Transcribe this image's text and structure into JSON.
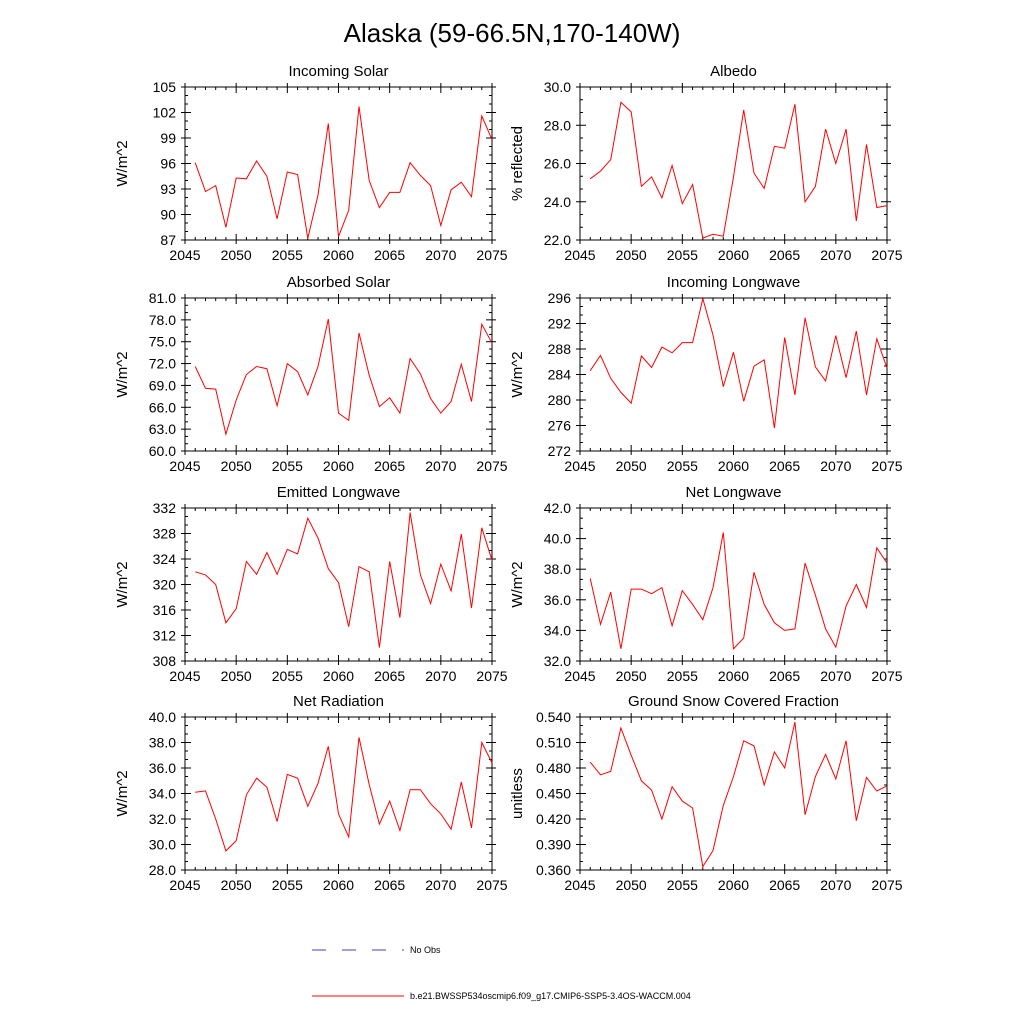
{
  "figure": {
    "title": "Alaska (59-66.5N,170-140W)",
    "line_color": "#ff0000",
    "obs_color": "#4040c0"
  },
  "legend": {
    "obs_label": "No Obs",
    "model_label": "b.e21.BWSSP534oscmip6.f09_g17.CMIP6-SSP5-3.4OS-WACCM.004"
  },
  "chart_data": [
    {
      "type": "line",
      "title": "Incoming Solar",
      "ylabel": "W/m^2",
      "xlim": [
        2045,
        2075
      ],
      "ylim": [
        87,
        105
      ],
      "yticks": [
        "87",
        "90",
        "93",
        "96",
        "99",
        "102",
        "105"
      ],
      "xticks": [
        "2045",
        "2050",
        "2055",
        "2060",
        "2065",
        "2070",
        "2075"
      ],
      "x": [
        2046,
        2047,
        2048,
        2049,
        2050,
        2051,
        2052,
        2053,
        2054,
        2055,
        2056,
        2057,
        2058,
        2059,
        2060,
        2061,
        2062,
        2063,
        2064,
        2065,
        2066,
        2067,
        2068,
        2069,
        2070,
        2071,
        2072,
        2073,
        2074,
        2075
      ],
      "series": [
        {
          "values": [
            96.1,
            92.7,
            93.4,
            88.5,
            94.3,
            94.2,
            96.3,
            94.5,
            89.5,
            95.0,
            94.7,
            87.2,
            92.3,
            100.7,
            87.4,
            90.5,
            102.7,
            94.0,
            90.8,
            92.6,
            92.6,
            96.1,
            94.6,
            93.4,
            88.7,
            92.9,
            93.8,
            92.1,
            101.6,
            98.8
          ]
        }
      ]
    },
    {
      "type": "line",
      "title": "Albedo",
      "ylabel": "% reflected",
      "xlim": [
        2045,
        2075
      ],
      "ylim": [
        22.0,
        30.0
      ],
      "yticks": [
        "22.0",
        "24.0",
        "26.0",
        "28.0",
        "30.0"
      ],
      "xticks": [
        "2045",
        "2050",
        "2055",
        "2060",
        "2065",
        "2070",
        "2075"
      ],
      "x": [
        2046,
        2047,
        2048,
        2049,
        2050,
        2051,
        2052,
        2053,
        2054,
        2055,
        2056,
        2057,
        2058,
        2059,
        2060,
        2061,
        2062,
        2063,
        2064,
        2065,
        2066,
        2067,
        2068,
        2069,
        2070,
        2071,
        2072,
        2073,
        2074,
        2075
      ],
      "series": [
        {
          "values": [
            25.2,
            25.6,
            26.2,
            29.2,
            28.7,
            24.8,
            25.3,
            24.2,
            25.9,
            23.9,
            24.9,
            22.1,
            22.3,
            22.2,
            25.3,
            28.8,
            25.5,
            24.7,
            26.9,
            26.8,
            29.1,
            24.0,
            24.8,
            27.8,
            26.0,
            27.8,
            23.0,
            27.0,
            23.7,
            23.8
          ]
        }
      ]
    },
    {
      "type": "line",
      "title": "Absorbed Solar",
      "ylabel": "W/m^2",
      "xlim": [
        2045,
        2075
      ],
      "ylim": [
        60.0,
        81.0
      ],
      "yticks": [
        "60.0",
        "63.0",
        "66.0",
        "69.0",
        "72.0",
        "75.0",
        "78.0",
        "81.0"
      ],
      "xticks": [
        "2045",
        "2050",
        "2055",
        "2060",
        "2065",
        "2070",
        "2075"
      ],
      "x": [
        2046,
        2047,
        2048,
        2049,
        2050,
        2051,
        2052,
        2053,
        2054,
        2055,
        2056,
        2057,
        2058,
        2059,
        2060,
        2061,
        2062,
        2063,
        2064,
        2065,
        2066,
        2067,
        2068,
        2069,
        2070,
        2071,
        2072,
        2073,
        2074,
        2075
      ],
      "series": [
        {
          "values": [
            71.6,
            68.6,
            68.5,
            62.3,
            67.0,
            70.5,
            71.6,
            71.3,
            66.2,
            72.0,
            70.9,
            67.7,
            71.6,
            78.1,
            65.2,
            64.2,
            76.2,
            70.4,
            66.1,
            67.3,
            65.2,
            72.7,
            70.6,
            67.2,
            65.2,
            66.8,
            71.9,
            66.8,
            77.4,
            74.8
          ]
        }
      ]
    },
    {
      "type": "line",
      "title": "Incoming Longwave",
      "ylabel": "W/m^2",
      "xlim": [
        2045,
        2075
      ],
      "ylim": [
        272,
        296
      ],
      "yticks": [
        "272",
        "276",
        "280",
        "284",
        "288",
        "292",
        "296"
      ],
      "xticks": [
        "2045",
        "2050",
        "2055",
        "2060",
        "2065",
        "2070",
        "2075"
      ],
      "x": [
        2046,
        2047,
        2048,
        2049,
        2050,
        2051,
        2052,
        2053,
        2054,
        2055,
        2056,
        2057,
        2058,
        2059,
        2060,
        2061,
        2062,
        2063,
        2064,
        2065,
        2066,
        2067,
        2068,
        2069,
        2070,
        2071,
        2072,
        2073,
        2074,
        2075
      ],
      "series": [
        {
          "values": [
            284.6,
            287.0,
            283.4,
            281.2,
            279.5,
            286.9,
            285.1,
            288.3,
            287.4,
            289.0,
            289.0,
            295.9,
            290.2,
            282.1,
            287.5,
            279.8,
            285.3,
            286.3,
            275.6,
            289.8,
            280.8,
            292.9,
            285.2,
            283.0,
            290.1,
            283.5,
            290.8,
            280.8,
            289.6,
            285.0
          ]
        }
      ]
    },
    {
      "type": "line",
      "title": "Emitted Longwave",
      "ylabel": "W/m^2",
      "xlim": [
        2045,
        2075
      ],
      "ylim": [
        308,
        332
      ],
      "yticks": [
        "308",
        "312",
        "316",
        "320",
        "324",
        "328",
        "332"
      ],
      "xticks": [
        "2045",
        "2050",
        "2055",
        "2060",
        "2065",
        "2070",
        "2075"
      ],
      "x": [
        2046,
        2047,
        2048,
        2049,
        2050,
        2051,
        2052,
        2053,
        2054,
        2055,
        2056,
        2057,
        2058,
        2059,
        2060,
        2061,
        2062,
        2063,
        2064,
        2065,
        2066,
        2067,
        2068,
        2069,
        2070,
        2071,
        2072,
        2073,
        2074,
        2075
      ],
      "series": [
        {
          "values": [
            322.0,
            321.5,
            320.0,
            314.0,
            316.2,
            323.6,
            321.6,
            325.0,
            321.6,
            325.5,
            324.8,
            330.4,
            327.3,
            322.5,
            320.3,
            313.4,
            322.8,
            322.0,
            310.1,
            323.6,
            314.8,
            331.3,
            321.5,
            317.0,
            323.2,
            319.0,
            327.9,
            316.3,
            328.9,
            323.8
          ]
        }
      ]
    },
    {
      "type": "line",
      "title": "Net Longwave",
      "ylabel": "W/m^2",
      "xlim": [
        2045,
        2075
      ],
      "ylim": [
        32.0,
        42.0
      ],
      "yticks": [
        "32.0",
        "34.0",
        "36.0",
        "38.0",
        "40.0",
        "42.0"
      ],
      "xticks": [
        "2045",
        "2050",
        "2055",
        "2060",
        "2065",
        "2070",
        "2075"
      ],
      "x": [
        2046,
        2047,
        2048,
        2049,
        2050,
        2051,
        2052,
        2053,
        2054,
        2055,
        2056,
        2057,
        2058,
        2059,
        2060,
        2061,
        2062,
        2063,
        2064,
        2065,
        2066,
        2067,
        2068,
        2069,
        2070,
        2071,
        2072,
        2073,
        2074,
        2075
      ],
      "series": [
        {
          "values": [
            37.4,
            34.4,
            36.5,
            32.8,
            36.7,
            36.7,
            36.4,
            36.8,
            34.3,
            36.6,
            35.7,
            34.7,
            36.8,
            40.4,
            32.8,
            33.5,
            37.8,
            35.7,
            34.5,
            34.0,
            34.1,
            38.4,
            36.3,
            34.1,
            32.9,
            35.6,
            37.0,
            35.5,
            39.4,
            38.4
          ]
        }
      ]
    },
    {
      "type": "line",
      "title": "Net Radiation",
      "ylabel": "W/m^2",
      "xlim": [
        2045,
        2075
      ],
      "ylim": [
        28.0,
        40.0
      ],
      "yticks": [
        "28.0",
        "30.0",
        "32.0",
        "34.0",
        "36.0",
        "38.0",
        "40.0"
      ],
      "xticks": [
        "2045",
        "2050",
        "2055",
        "2060",
        "2065",
        "2070",
        "2075"
      ],
      "x": [
        2046,
        2047,
        2048,
        2049,
        2050,
        2051,
        2052,
        2053,
        2054,
        2055,
        2056,
        2057,
        2058,
        2059,
        2060,
        2061,
        2062,
        2063,
        2064,
        2065,
        2066,
        2067,
        2068,
        2069,
        2070,
        2071,
        2072,
        2073,
        2074,
        2075
      ],
      "series": [
        {
          "values": [
            34.1,
            34.2,
            32.0,
            29.5,
            30.3,
            33.9,
            35.2,
            34.5,
            31.8,
            35.5,
            35.2,
            33.0,
            34.8,
            37.7,
            32.4,
            30.6,
            38.4,
            34.7,
            31.6,
            33.4,
            31.1,
            34.3,
            34.3,
            33.2,
            32.4,
            31.2,
            34.9,
            31.3,
            38.0,
            36.4
          ]
        }
      ]
    },
    {
      "type": "line",
      "title": "Ground Snow Covered Fraction",
      "ylabel": "unitless",
      "xlim": [
        2045,
        2075
      ],
      "ylim": [
        0.36,
        0.54
      ],
      "yticks": [
        "0.360",
        "0.390",
        "0.420",
        "0.450",
        "0.480",
        "0.510",
        "0.540"
      ],
      "xticks": [
        "2045",
        "2050",
        "2055",
        "2060",
        "2065",
        "2070",
        "2075"
      ],
      "x": [
        2046,
        2047,
        2048,
        2049,
        2050,
        2051,
        2052,
        2053,
        2054,
        2055,
        2056,
        2057,
        2058,
        2059,
        2060,
        2061,
        2062,
        2063,
        2064,
        2065,
        2066,
        2067,
        2068,
        2069,
        2070,
        2071,
        2072,
        2073,
        2074,
        2075
      ],
      "series": [
        {
          "values": [
            0.487,
            0.472,
            0.476,
            0.527,
            0.495,
            0.465,
            0.454,
            0.42,
            0.458,
            0.441,
            0.433,
            0.364,
            0.383,
            0.436,
            0.47,
            0.512,
            0.506,
            0.46,
            0.499,
            0.48,
            0.534,
            0.425,
            0.47,
            0.496,
            0.467,
            0.512,
            0.418,
            0.469,
            0.453,
            0.459
          ]
        }
      ]
    }
  ]
}
